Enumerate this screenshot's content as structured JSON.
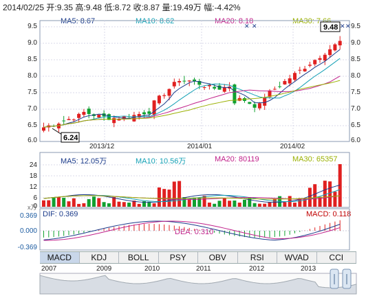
{
  "header": {
    "quote_line": "2014/02/25 开:9.35  高:9.48  低:8.72  收:8.87  量:19.49万  幅:-4.42%"
  },
  "price_panel": {
    "ma_labels": [
      {
        "text": "MA5: 8.67",
        "color": "#1a3a8a"
      },
      {
        "text": "MA10: 8.62",
        "color": "#14a0b5"
      },
      {
        "text": "MA20: 8.18",
        "color": "#c0208a"
      },
      {
        "text": "MA30: 7.66",
        "color": "#9ab000"
      }
    ],
    "y_ticks": [
      "9.5",
      "9.0",
      "8.5",
      "8.0",
      "7.5",
      "7.0",
      "6.5",
      "6.0"
    ],
    "high_marker": "9.48",
    "low_marker": "6.24",
    "dates": [
      "2013/12",
      "2014/01",
      "2014/02"
    ]
  },
  "volume_panel": {
    "ma_labels": [
      {
        "text": "MA5: 12.05万",
        "color": "#1a3a8a"
      },
      {
        "text": "MA10: 10.56万",
        "color": "#14a0b5"
      },
      {
        "text": "MA20: 80119",
        "color": "#c0208a"
      },
      {
        "text": "MA30: 65357",
        "color": "#9ab000"
      }
    ],
    "y_ticks": [
      "24",
      "18",
      "12",
      "6",
      "0"
    ],
    "unit": "x万"
  },
  "macd_panel": {
    "dif_label": "DIF: 0.369",
    "dea_label": "DEA: 0.310",
    "macd_label": "MACD: 0.118",
    "y_ticks": [
      "0.369",
      "0.000",
      "-0.369"
    ]
  },
  "tabs": [
    "MACD",
    "KDJ",
    "BOLL",
    "PSY",
    "OBV",
    "RSI",
    "WVAD",
    "CCI"
  ],
  "overview": {
    "years": [
      "2007",
      "2009",
      "2010",
      "2011",
      "2012",
      "2013"
    ]
  },
  "colors": {
    "up": "#e02020",
    "down": "#10a030",
    "grid": "#d8d8e8",
    "panel_bg": "#ffffff"
  }
}
